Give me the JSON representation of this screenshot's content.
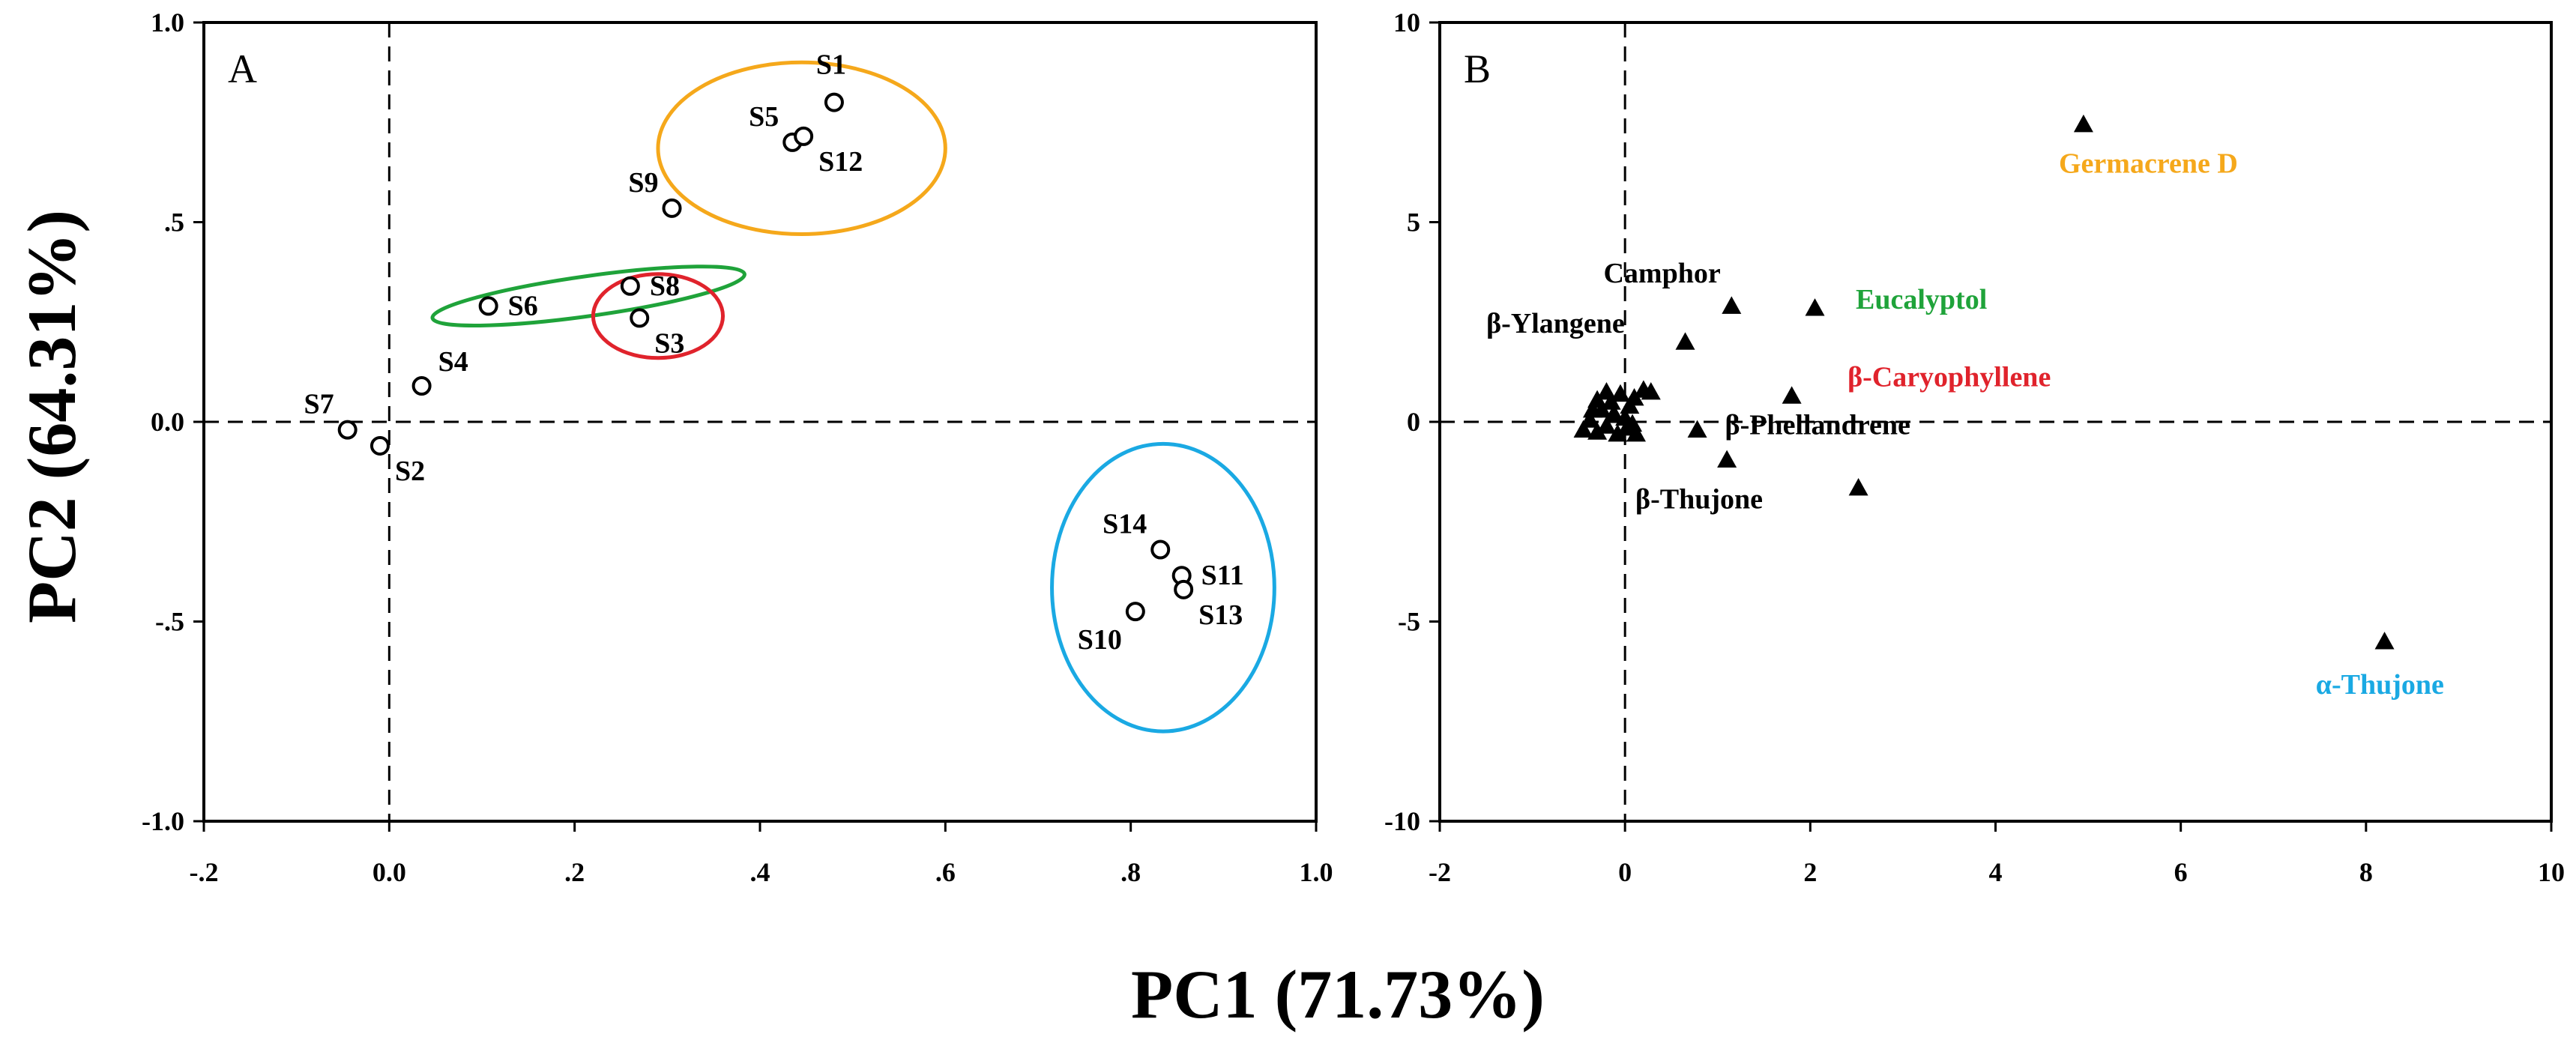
{
  "chart_data": [
    {
      "type": "scatter",
      "panel_label": "A",
      "xlim": [
        -0.2,
        1.0
      ],
      "ylim": [
        -1.0,
        1.0
      ],
      "x_ticks": [
        {
          "value": -0.2,
          "label": "-.2"
        },
        {
          "value": 0.0,
          "label": "0.0"
        },
        {
          "value": 0.2,
          "label": ".2"
        },
        {
          "value": 0.4,
          "label": ".4"
        },
        {
          "value": 0.6,
          "label": ".6"
        },
        {
          "value": 0.8,
          "label": ".8"
        },
        {
          "value": 1.0,
          "label": "1.0"
        }
      ],
      "y_ticks": [
        {
          "value": 1.0,
          "label": "1.0"
        },
        {
          "value": 0.5,
          "label": ".5"
        },
        {
          "value": 0.0,
          "label": "0.0"
        },
        {
          "value": -0.5,
          "label": "-.5"
        },
        {
          "value": -1.0,
          "label": "-1.0"
        }
      ],
      "points": [
        {
          "label": "S1",
          "x": 0.48,
          "y": 0.8,
          "label_pos": "above"
        },
        {
          "label": "S5",
          "x": 0.435,
          "y": 0.7,
          "label_pos": "upper-left"
        },
        {
          "label": "S12",
          "x": 0.447,
          "y": 0.715,
          "label_pos": "below-right"
        },
        {
          "label": "S9",
          "x": 0.305,
          "y": 0.535,
          "label_pos": "upper-left"
        },
        {
          "label": "S8",
          "x": 0.26,
          "y": 0.34,
          "label_pos": "right"
        },
        {
          "label": "S6",
          "x": 0.107,
          "y": 0.29,
          "label_pos": "right"
        },
        {
          "label": "S3",
          "x": 0.27,
          "y": 0.26,
          "label_pos": "below-right"
        },
        {
          "label": "S4",
          "x": 0.035,
          "y": 0.09,
          "label_pos": "upper-right"
        },
        {
          "label": "S7",
          "x": -0.045,
          "y": -0.02,
          "label_pos": "upper-left"
        },
        {
          "label": "S2",
          "x": -0.01,
          "y": -0.06,
          "label_pos": "below-right"
        },
        {
          "label": "S14",
          "x": 0.832,
          "y": -0.32,
          "label_pos": "upper-left"
        },
        {
          "label": "S11",
          "x": 0.855,
          "y": -0.385,
          "label_pos": "right"
        },
        {
          "label": "S13",
          "x": 0.857,
          "y": -0.42,
          "label_pos": "below-right"
        },
        {
          "label": "S10",
          "x": 0.805,
          "y": -0.475,
          "label_pos": "below-left"
        }
      ],
      "clusters": [
        {
          "color": "#f5a81b",
          "cx": 0.445,
          "cy": 0.685,
          "rx": 0.155,
          "ry": 0.215,
          "rotation": 0
        },
        {
          "color": "#1fa33a",
          "cx": 0.215,
          "cy": 0.315,
          "rx": 0.17,
          "ry": 0.05,
          "rotation": -8
        },
        {
          "color": "#e0232c",
          "cx": 0.29,
          "cy": 0.265,
          "rx": 0.07,
          "ry": 0.105,
          "rotation": 0
        },
        {
          "color": "#1aa9e3",
          "cx": 0.835,
          "cy": -0.415,
          "rx": 0.12,
          "ry": 0.36,
          "rotation": 0
        }
      ]
    },
    {
      "type": "scatter",
      "panel_label": "B",
      "xlim": [
        -2,
        10
      ],
      "ylim": [
        -10,
        10
      ],
      "x_ticks": [
        {
          "value": -2,
          "label": "-2"
        },
        {
          "value": 0,
          "label": "0"
        },
        {
          "value": 2,
          "label": "2"
        },
        {
          "value": 4,
          "label": "4"
        },
        {
          "value": 6,
          "label": "6"
        },
        {
          "value": 8,
          "label": "8"
        },
        {
          "value": 10,
          "label": "10"
        }
      ],
      "y_ticks": [
        {
          "value": 10,
          "label": "10"
        },
        {
          "value": 5,
          "label": "5"
        },
        {
          "value": 0,
          "label": "0"
        },
        {
          "value": -5,
          "label": "-5"
        },
        {
          "value": -10,
          "label": "-10"
        }
      ],
      "labeled_points": [
        {
          "label": "Germacrene D",
          "x": 4.95,
          "y": 7.45,
          "color": "#f5a81b",
          "lx": 5.65,
          "ly": 6.5
        },
        {
          "label": "Camphor",
          "x": 1.15,
          "y": 2.9,
          "color": "#000000",
          "lx": 0.4,
          "ly": 3.75
        },
        {
          "label": "Eucalyptol",
          "x": 2.05,
          "y": 2.85,
          "color": "#1fa33a",
          "lx": 3.2,
          "ly": 3.1
        },
        {
          "label": "β-Ylangene",
          "x": 0.65,
          "y": 2.0,
          "color": "#000000",
          "lx": -0.75,
          "ly": 2.5
        },
        {
          "label": "β-Caryophyllene",
          "x": 1.8,
          "y": 0.65,
          "color": "#e0232c",
          "lx": 3.5,
          "ly": 1.15
        },
        {
          "label": "β-Phellandrene",
          "x": 0.78,
          "y": -0.2,
          "color": "#000000",
          "lx": 2.08,
          "ly": -0.05
        },
        {
          "label": "β-Thujone",
          "x": 1.1,
          "y": -0.95,
          "color": "#000000",
          "lx": 0.8,
          "ly": -1.9
        },
        {
          "label": "α-Thujone",
          "x": 8.2,
          "y": -5.5,
          "color": "#1aa9e3",
          "lx": 8.15,
          "ly": -6.55
        }
      ],
      "unlabeled_points": [
        {
          "x": 2.52,
          "y": -1.65
        },
        {
          "x": -0.45,
          "y": -0.2
        },
        {
          "x": -0.38,
          "y": 0.05
        },
        {
          "x": -0.3,
          "y": -0.25
        },
        {
          "x": -0.25,
          "y": 0.3
        },
        {
          "x": -0.2,
          "y": -0.1
        },
        {
          "x": -0.15,
          "y": 0.5
        },
        {
          "x": -0.12,
          "y": 0.2
        },
        {
          "x": -0.08,
          "y": -0.3
        },
        {
          "x": -0.05,
          "y": 0.7
        },
        {
          "x": 0.0,
          "y": 0.1
        },
        {
          "x": 0.02,
          "y": -0.15
        },
        {
          "x": 0.05,
          "y": 0.4
        },
        {
          "x": 0.08,
          "y": -0.05
        },
        {
          "x": 0.1,
          "y": 0.6
        },
        {
          "x": -0.3,
          "y": 0.55
        },
        {
          "x": 0.2,
          "y": 0.8
        },
        {
          "x": 0.28,
          "y": 0.75
        },
        {
          "x": -0.2,
          "y": 0.75
        },
        {
          "x": 0.12,
          "y": -0.3
        },
        {
          "x": -0.35,
          "y": 0.3
        }
      ]
    }
  ],
  "xlabel": "PC1 (71.73%)",
  "ylabel": "PC2 (64.31%)"
}
